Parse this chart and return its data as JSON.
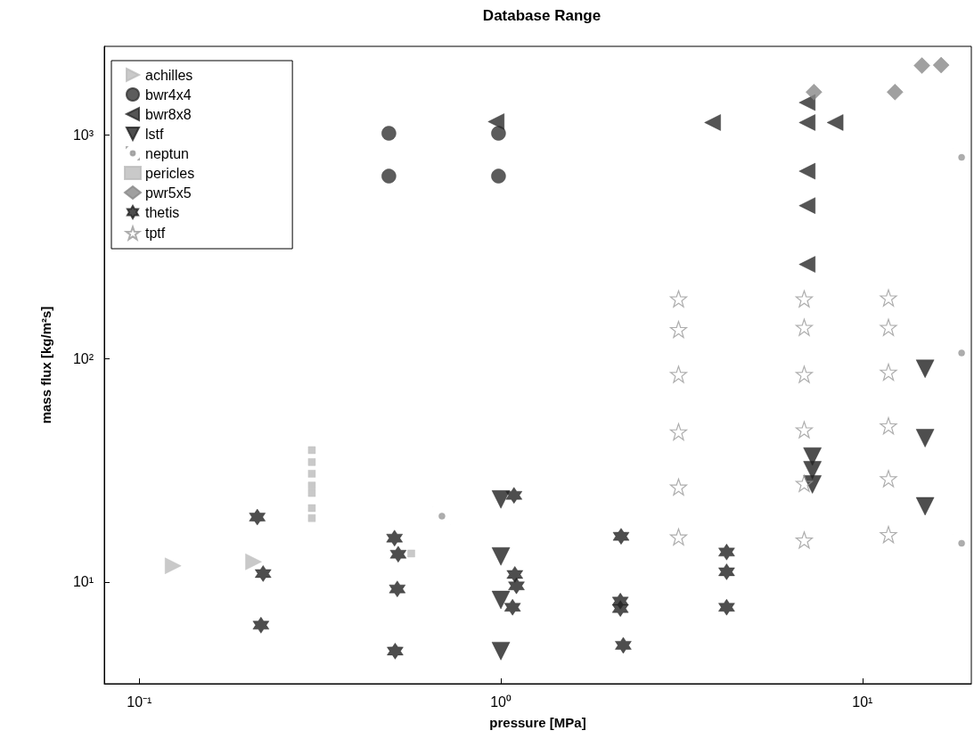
{
  "chart_data": {
    "type": "scatter",
    "title": "Database Range",
    "xlabel": "pressure [MPa]",
    "ylabel": "mass flux [kg/m²s]",
    "log": "xy",
    "grid": false,
    "legend": "top left",
    "xlim": [
      0.08,
      20
    ],
    "ylim": [
      3.5,
      2500
    ],
    "xticks": [
      {
        "value": 0.1,
        "label": "10⁻¹"
      },
      {
        "value": 1,
        "label": "10⁰"
      },
      {
        "value": 10,
        "label": "10¹"
      }
    ],
    "yticks": [
      {
        "value": 10,
        "label": "10¹"
      },
      {
        "value": 100,
        "label": "10²"
      },
      {
        "value": 1000,
        "label": "10³"
      }
    ],
    "series": [
      {
        "name": "achilles",
        "color": "#bbbbbb",
        "marker": "triangle-right",
        "x": [
          0.124,
          0.207
        ],
        "values": [
          11.8,
          12.3
        ]
      },
      {
        "name": "bwr4x4",
        "color": "#333333",
        "marker": "circle",
        "x": [
          0.49,
          0.49,
          0.985,
          0.985
        ],
        "values": [
          1020,
          656,
          1020,
          656
        ]
      },
      {
        "name": "bwr8x8",
        "color": "#2a2a2a",
        "marker": "triangle-left",
        "x": [
          0.97,
          3.85,
          7.03,
          7.03,
          8.4,
          7.03,
          7.03,
          7.03
        ],
        "values": [
          1150,
          1140,
          1140,
          1400,
          1140,
          690,
          484,
          264
        ]
      },
      {
        "name": "lstf",
        "color": "#222222",
        "marker": "triangle-down",
        "x": [
          1.0,
          1.0,
          1.0,
          1.0,
          7.27,
          7.27,
          7.27,
          14.9,
          14.9,
          14.9
        ],
        "values": [
          23.4,
          13.0,
          8.3,
          4.9,
          36.4,
          31.6,
          27.3,
          90,
          44,
          21.8
        ]
      },
      {
        "name": "neptun",
        "color": "#999999",
        "x": [
          0.687,
          18.8,
          18.8,
          18.8
        ],
        "values": [
          19.7,
          14.9,
          106,
          796
        ]
      },
      {
        "name": "pericles",
        "color": "#bbbbbb",
        "marker": "square",
        "x": [
          0.3,
          0.3,
          0.3,
          0.3,
          0.3,
          0.3,
          0.3,
          0.565
        ],
        "values": [
          38.9,
          34.4,
          30.5,
          27.0,
          25.0,
          21.4,
          19.3,
          13.4
        ]
      },
      {
        "name": "pwr5x5",
        "color": "#888888",
        "marker": "diamond",
        "x": [
          7.34,
          12.3,
          14.6,
          16.5
        ],
        "values": [
          1560,
          1560,
          2050,
          2060
        ]
      },
      {
        "name": "thetis",
        "color": "#222222",
        "marker": "cross",
        "x": [
          0.212,
          0.22,
          0.217,
          0.508,
          0.52,
          0.517,
          0.51,
          1.087,
          1.093,
          1.104,
          1.077,
          2.15,
          2.14,
          2.14,
          2.18,
          4.21,
          4.21,
          4.21
        ],
        "values": [
          19.5,
          10.9,
          6.4,
          15.7,
          13.3,
          9.3,
          4.9,
          24.4,
          10.8,
          9.6,
          7.7,
          16.0,
          8.2,
          7.6,
          5.2,
          13.6,
          11.1,
          7.7
        ]
      },
      {
        "name": "tptf",
        "color": "#999999",
        "marker": "star",
        "x": [
          3.1,
          3.1,
          3.1,
          3.1,
          3.1,
          3.1,
          6.9,
          6.9,
          6.9,
          6.9,
          6.9,
          6.9,
          11.8,
          11.8,
          11.8,
          11.8,
          11.8,
          11.8
        ],
        "values": [
          185,
          135,
          85,
          47,
          26.6,
          15.9,
          185,
          138,
          85,
          48,
          27.6,
          15.4,
          187,
          138,
          87,
          50,
          29,
          16.3
        ]
      }
    ]
  }
}
